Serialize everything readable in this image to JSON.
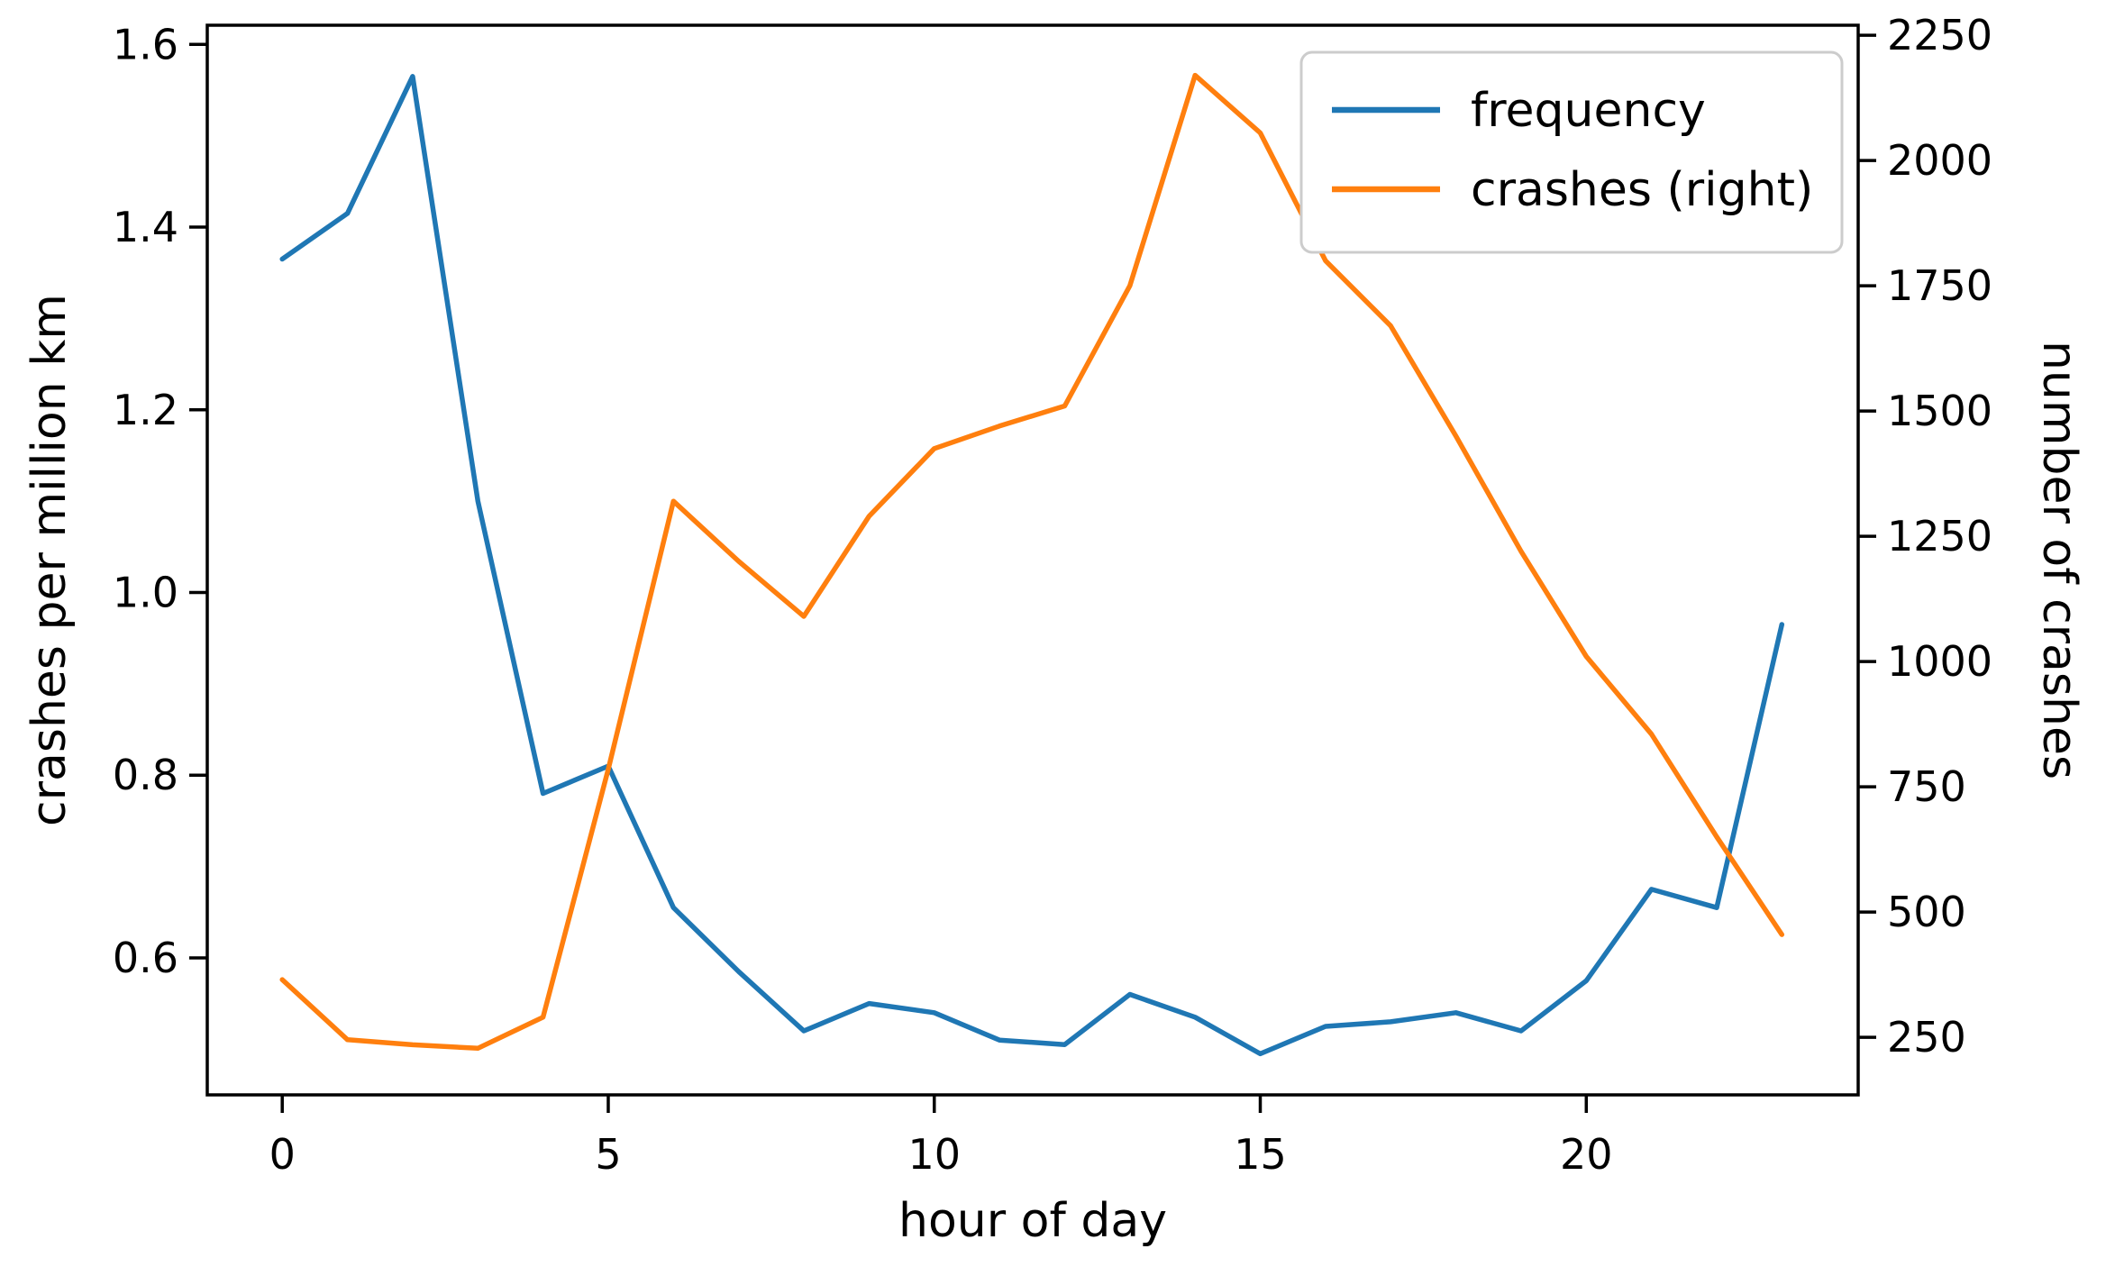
{
  "chart_data": {
    "type": "line",
    "title": "",
    "xlabel": "hour of day",
    "ylabel_left": "crashes per million km",
    "ylabel_right": "number of crashes",
    "x": [
      0,
      1,
      2,
      3,
      4,
      5,
      6,
      7,
      8,
      9,
      10,
      11,
      12,
      13,
      14,
      15,
      16,
      17,
      18,
      19,
      20,
      21,
      22,
      23
    ],
    "series": [
      {
        "name": "frequency",
        "axis": "left",
        "color": "#1f77b4",
        "values": [
          1.365,
          1.415,
          1.565,
          1.1,
          0.78,
          0.81,
          0.655,
          0.585,
          0.52,
          0.55,
          0.54,
          0.51,
          0.505,
          0.56,
          0.535,
          0.495,
          0.525,
          0.53,
          0.54,
          0.52,
          0.575,
          0.675,
          0.655,
          0.965
        ]
      },
      {
        "name": "crashes (right)",
        "axis": "right",
        "color": "#ff7f0e",
        "values": [
          365,
          245,
          235,
          228,
          290,
          785,
          1320,
          1200,
          1090,
          1290,
          1425,
          1470,
          1510,
          1750,
          2170,
          2055,
          1800,
          1670,
          1450,
          1220,
          1010,
          855,
          650,
          455
        ]
      }
    ],
    "axes": {
      "x": {
        "lim": [
          -1.15,
          24.17
        ],
        "tick_values": [
          0,
          5,
          10,
          15,
          20
        ],
        "tick_labels": [
          "0",
          "5",
          "10",
          "15",
          "20"
        ]
      },
      "left": {
        "lim": [
          0.45,
          1.621
        ],
        "tick_values": [
          1.6,
          1.4,
          1.2,
          1.0,
          0.8,
          0.6
        ],
        "tick_labels": [
          "1.6",
          "1.4",
          "1.2",
          "1.0",
          "0.8",
          "0.6"
        ]
      },
      "right": {
        "lim": [
          135,
          2270
        ],
        "tick_values": [
          2250,
          2000,
          1750,
          1500,
          1250,
          1000,
          750,
          500,
          250
        ],
        "tick_labels": [
          "2250",
          "2000",
          "1750",
          "1500",
          "1250",
          "1000",
          "750",
          "500",
          "250"
        ]
      }
    },
    "legend": {
      "position": "upper right",
      "entries": [
        {
          "label": "frequency",
          "color": "#1f77b4"
        },
        {
          "label": "crashes (right)",
          "color": "#ff7f0e"
        }
      ]
    },
    "grid": false,
    "background": "#ffffff",
    "spine_color": "#000000"
  }
}
